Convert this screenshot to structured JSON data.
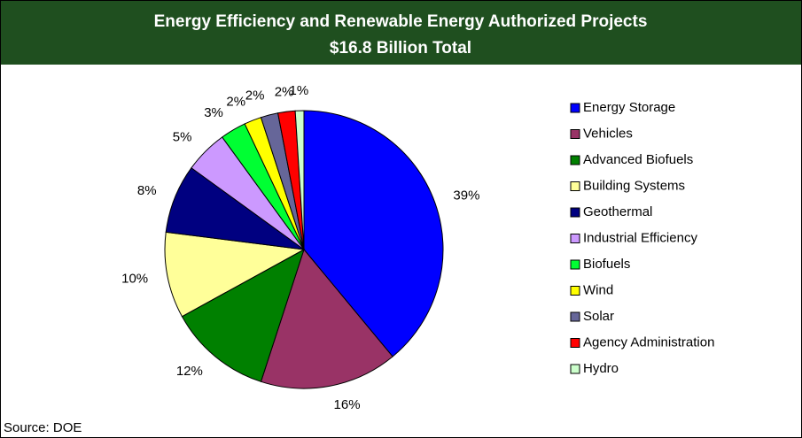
{
  "chart_data": {
    "type": "pie",
    "title": "Energy Efficiency and Renewable Energy Authorized Projects",
    "subtitle": "$16.8 Billion Total",
    "source": "Source: DOE",
    "categories": [
      "Energy Storage",
      "Vehicles",
      "Advanced Biofuels",
      "Building Systems",
      "Geothermal",
      "Industrial Efficiency",
      "Biofuels",
      "Wind",
      "Solar",
      "Agency Administration",
      "Hydro"
    ],
    "values": [
      39,
      16,
      12,
      10,
      8,
      5,
      3,
      2,
      2,
      2,
      1
    ],
    "value_labels": [
      "39%",
      "16%",
      "12%",
      "10%",
      "8%",
      "5%",
      "3%",
      "2%",
      "2%",
      "2%",
      "1%"
    ],
    "colors": [
      "#0000ff",
      "#993366",
      "#008000",
      "#ffff99",
      "#000080",
      "#cc99ff",
      "#00ff33",
      "#ffff00",
      "#666699",
      "#ff0000",
      "#ccffcc"
    ],
    "legend": "right"
  }
}
